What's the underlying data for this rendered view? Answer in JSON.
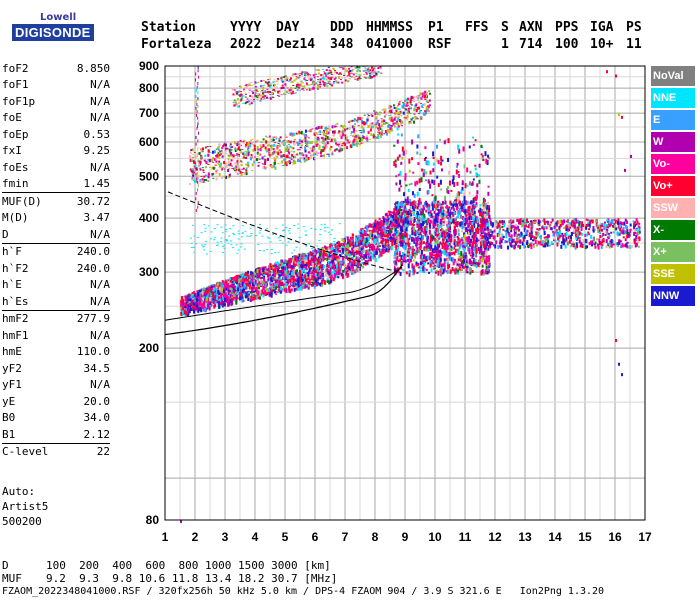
{
  "logo": {
    "line1": "Lowell",
    "line2": "DIGISONDE"
  },
  "header": {
    "labels": [
      "Station",
      "YYYY",
      "DAY",
      "DDD",
      "HHMMSS",
      "P1",
      "FFS",
      "S",
      "AXN",
      "PPS",
      "IGA",
      "PS"
    ],
    "values": [
      "Fortaleza",
      "2022",
      "Dez14",
      "348",
      "041000",
      "RSF",
      "1",
      "714",
      "100",
      "10+",
      "11"
    ]
  },
  "params": [
    {
      "name": "foF2",
      "value": "8.850"
    },
    {
      "name": "foF1",
      "value": "N/A"
    },
    {
      "name": "foF1p",
      "value": "N/A"
    },
    {
      "name": "foE",
      "value": "N/A"
    },
    {
      "name": "foEp",
      "value": "0.53"
    },
    {
      "name": "fxI",
      "value": "9.25"
    },
    {
      "name": "foEs",
      "value": "N/A"
    },
    {
      "name": "fmin",
      "value": "1.45"
    },
    {
      "name": "MUF(D)",
      "value": "30.72",
      "sep": true
    },
    {
      "name": "M(D)",
      "value": "3.47"
    },
    {
      "name": "D",
      "value": "N/A"
    },
    {
      "name": "h`F",
      "value": "240.0",
      "sep": true
    },
    {
      "name": "h`F2",
      "value": "240.0"
    },
    {
      "name": "h`E",
      "value": "N/A"
    },
    {
      "name": "h`Es",
      "value": "N/A"
    },
    {
      "name": "hmF2",
      "value": "277.9",
      "sep": true
    },
    {
      "name": "hmF1",
      "value": "N/A"
    },
    {
      "name": "hmE",
      "value": "110.0"
    },
    {
      "name": "yF2",
      "value": "34.5"
    },
    {
      "name": "yF1",
      "value": "N/A"
    },
    {
      "name": "yE",
      "value": "20.0"
    },
    {
      "name": "B0",
      "value": "34.0"
    },
    {
      "name": "B1",
      "value": "2.12"
    },
    {
      "name": "C-level",
      "value": "22",
      "sep": true
    }
  ],
  "auto": {
    "line1": "Auto:",
    "line2": "Artist5",
    "line3": "500200"
  },
  "legend": [
    {
      "label": "NoVal",
      "color": "#808080"
    },
    {
      "label": "NNE",
      "color": "#00e5ff"
    },
    {
      "label": "E",
      "color": "#3aa0ff"
    },
    {
      "label": "W",
      "color": "#b000b0"
    },
    {
      "label": "Vo-",
      "color": "#ff00a0"
    },
    {
      "label": "Vo+",
      "color": "#ff0030"
    },
    {
      "label": "SSW",
      "color": "#ffb0b0"
    },
    {
      "label": "X-",
      "color": "#007a00"
    },
    {
      "label": "X+",
      "color": "#7ac060"
    },
    {
      "label": "SSE",
      "color": "#c0c000"
    },
    {
      "label": "NNW",
      "color": "#1a1ad0"
    }
  ],
  "chart_data": {
    "type": "scatter",
    "x_ticks": [
      "1",
      "2",
      "3",
      "4",
      "5",
      "6",
      "7",
      "8",
      "9",
      "10",
      "11",
      "12",
      "13",
      "14",
      "15",
      "16",
      "17"
    ],
    "y_ticks": [
      "80",
      "200",
      "300",
      "400",
      "500",
      "600",
      "700",
      "800",
      "900"
    ],
    "xlim": [
      1,
      17
    ],
    "ylim": [
      80,
      900
    ],
    "y_scale": "log",
    "grid": true
  },
  "footer": {
    "d_label": "D",
    "d_values": "100  200  400  600  800 1000 1500 3000 [km]",
    "muf_label": "MUF",
    "muf_values": "9.2  9.3  9.8 10.6 11.8 13.4 18.2 30.7 [MHz]",
    "file_info": "FZAOM_2022348041000.RSF / 320fx256h 50 kHz 5.0 km / DPS-4 FZAOM 904 / 3.9 S 321.6 E   Ion2Png 1.3.20"
  }
}
